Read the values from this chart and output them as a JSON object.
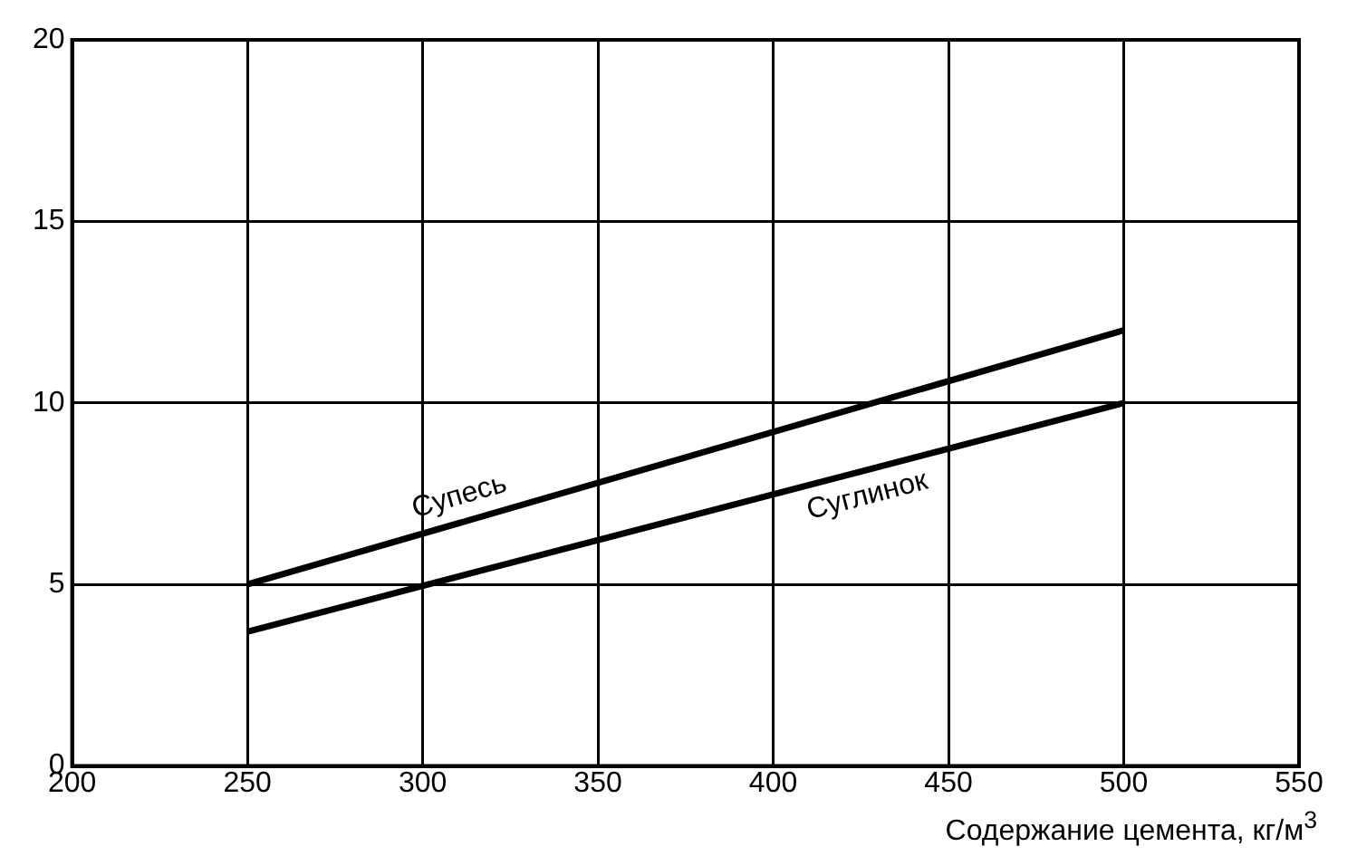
{
  "chart_data": {
    "type": "line",
    "xlabel": "Содержание цемента, кг/м$^{3}$",
    "x": [
      250,
      500
    ],
    "series": [
      {
        "name": "Супесь",
        "color": "#000000",
        "values": [
          5,
          12
        ]
      },
      {
        "name": "Суглинок",
        "color": "#000000",
        "values": [
          3.7,
          10
        ]
      }
    ],
    "xlim": [
      200,
      550
    ],
    "xticks": [
      200,
      250,
      300,
      350,
      400,
      450,
      500,
      550
    ],
    "ylim": [
      0,
      20
    ],
    "yticks": [
      0,
      5,
      10,
      15,
      20
    ],
    "grid": true,
    "legend": false,
    "marker": "none",
    "line_style": "solid"
  }
}
